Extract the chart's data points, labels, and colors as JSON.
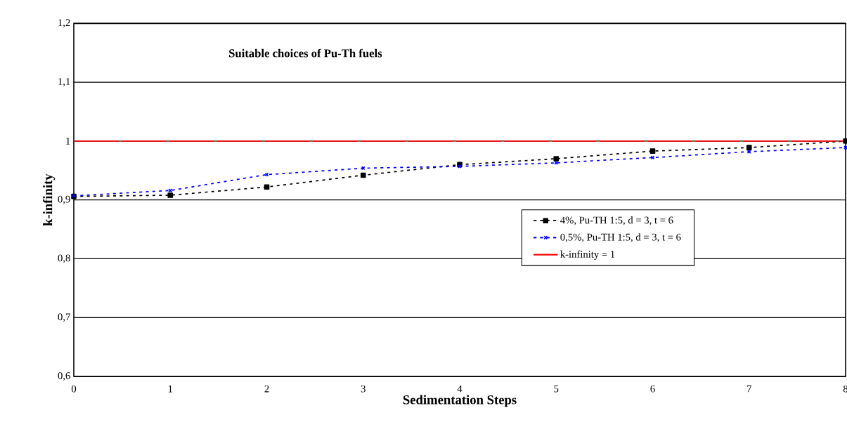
{
  "chart_data": {
    "type": "line",
    "title": "Suitable choices of Pu-Th fuels",
    "xlabel": "Sedimentation Steps",
    "ylabel": "k-infinity",
    "x": [
      0,
      1,
      2,
      3,
      4,
      5,
      6,
      7,
      8
    ],
    "series": [
      {
        "name": "4%,    Pu-TH 1:5, d = 3, t = 6",
        "color": "#000000",
        "marker": "square",
        "line_style": "dotted",
        "values": [
          0.906,
          0.908,
          0.922,
          0.942,
          0.96,
          0.97,
          0.983,
          0.989,
          1.0
        ]
      },
      {
        "name": "0,5%, Pu-TH 1:5, d = 3, t = 6",
        "color": "#0000ff",
        "marker": "cross",
        "line_style": "dotted",
        "values": [
          0.907,
          0.916,
          0.943,
          0.954,
          0.957,
          0.963,
          0.972,
          0.982,
          0.989
        ]
      },
      {
        "name": "k-infinity = 1",
        "color": "#ff0000",
        "marker": "none",
        "line_style": "dashed",
        "values": [
          1,
          1,
          1,
          1,
          1,
          1,
          1,
          1,
          1
        ]
      }
    ],
    "xlim": [
      0,
      8
    ],
    "xticks": [
      0,
      1,
      2,
      3,
      4,
      5,
      6,
      7,
      8
    ],
    "ylim": [
      0.6,
      1.2
    ],
    "yticks": [
      {
        "value": 0.6,
        "label": "0,6"
      },
      {
        "value": 0.7,
        "label": "0,7"
      },
      {
        "value": 0.8,
        "label": "0,8"
      },
      {
        "value": 0.9,
        "label": "0,9"
      },
      1,
      {
        "value": 1.1,
        "label": "1,1"
      },
      {
        "value": 1.2,
        "label": "1,2"
      }
    ],
    "grid": "y",
    "legend": "right"
  }
}
